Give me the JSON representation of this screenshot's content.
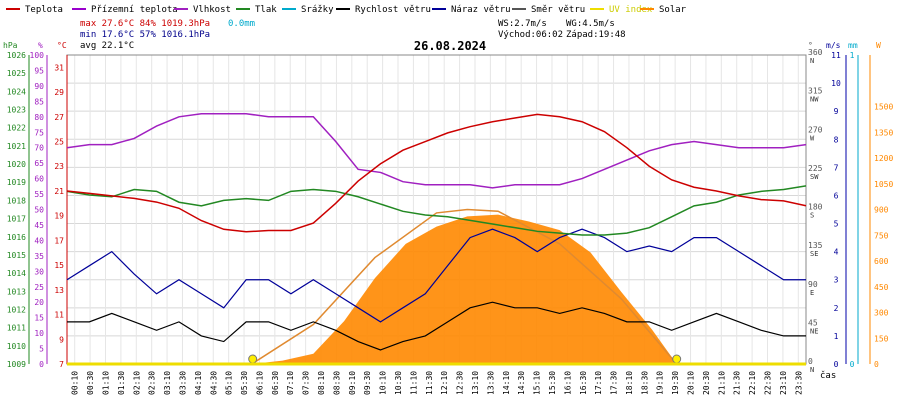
{
  "chart_data": {
    "type": "line",
    "title": "26.08.2024",
    "xlabel": "čas",
    "colors": {
      "teplota": "#cc0000",
      "pocitova": "#9900cc",
      "vlhkost": "#a020c0",
      "tlak": "#228822",
      "srazky": "#00aacc",
      "rychlost": "#000000",
      "naraz": "#000099",
      "smer": "#555555",
      "uv": "#eedd00",
      "solar": "#ff8800"
    },
    "legend": [
      {
        "key": "teplota",
        "label": "Teplota"
      },
      {
        "key": "pocitova",
        "label": "Přízemní teplota"
      },
      {
        "key": "vlhkost",
        "label": "Vlhkost"
      },
      {
        "key": "tlak",
        "label": "Tlak"
      },
      {
        "key": "srazky",
        "label": "Srážky"
      },
      {
        "key": "rychlost",
        "label": "Rychlost větru"
      },
      {
        "key": "naraz",
        "label": "Náraz větru"
      },
      {
        "key": "smer",
        "label": "Směr větru"
      },
      {
        "key": "uv",
        "label": "UV index"
      },
      {
        "key": "solar",
        "label": "Solar"
      }
    ],
    "stats": {
      "max_label": "max 27.6°C  84%  1019.3hPa",
      "min_label": "min 17.6°C  57%  1016.1hPa",
      "avg_label": "avg 22.1°C",
      "precip_label": "0.0mm",
      "ws_label": "WS:2.7m/s",
      "wg_label": "WG:4.5m/s",
      "sunrise_label": "Východ:06:02",
      "sunset_label": "Západ:19:48"
    },
    "axes": {
      "hpa": {
        "unit": "hPa",
        "min": 1009,
        "max": 1026,
        "ticks": [
          "1026",
          "1025",
          "1024",
          "1023",
          "1022",
          "1021",
          "1020",
          "1019",
          "1018",
          "1017",
          "1016",
          "1015",
          "1014",
          "1013",
          "1012",
          "1011",
          "1010",
          "1009"
        ]
      },
      "pct": {
        "unit": "%",
        "min": 0,
        "max": 100,
        "ticks": [
          "100",
          "95",
          "90",
          "85",
          "80",
          "75",
          "70",
          "65",
          "60",
          "55",
          "50",
          "45",
          "40",
          "35",
          "30",
          "25",
          "20",
          "15",
          "10",
          "5",
          "0"
        ]
      },
      "temp": {
        "unit": "°C",
        "min": 7,
        "max": 32,
        "ticks": [
          "31",
          "29",
          "27",
          "25",
          "23",
          "21",
          "19",
          "17",
          "15",
          "13",
          "11",
          "9",
          "7"
        ]
      },
      "deg": {
        "unit": "°",
        "min": 0,
        "max": 360,
        "ticks": [
          {
            "v": 360,
            "l": "360",
            "d": "N"
          },
          {
            "v": 315,
            "l": "315",
            "d": "NW"
          },
          {
            "v": 270,
            "l": "270",
            "d": "W"
          },
          {
            "v": 225,
            "l": "225",
            "d": "SW"
          },
          {
            "v": 180,
            "l": "180",
            "d": "S"
          },
          {
            "v": 135,
            "l": "135",
            "d": "SE"
          },
          {
            "v": 90,
            "l": "90",
            "d": "E"
          },
          {
            "v": 45,
            "l": "45",
            "d": "NE"
          },
          {
            "v": 0,
            "l": "0",
            "d": "N"
          }
        ]
      },
      "ms": {
        "unit": "m/s",
        "min": 0,
        "max": 11,
        "ticks": [
          "11",
          "10",
          "9",
          "8",
          "7",
          "6",
          "5",
          "4",
          "3",
          "2",
          "1",
          "0"
        ]
      },
      "mm": {
        "unit": "mm",
        "min": 0,
        "max": 1,
        "ticks": [
          "1",
          "0"
        ]
      },
      "solar": {
        "unit": "W",
        "min": 0,
        "max": 1800,
        "ticks": [
          "1500",
          "1350",
          "1200",
          "1050",
          "900",
          "750",
          "600",
          "450",
          "300",
          "150",
          "0"
        ]
      }
    },
    "x_ticks": [
      "00:10",
      "00:30",
      "01:10",
      "01:30",
      "02:10",
      "02:30",
      "03:10",
      "03:30",
      "04:10",
      "04:30",
      "05:10",
      "05:30",
      "06:10",
      "06:30",
      "07:10",
      "07:30",
      "08:10",
      "08:30",
      "09:10",
      "09:30",
      "10:10",
      "10:30",
      "11:10",
      "11:30",
      "12:10",
      "12:30",
      "13:10",
      "13:30",
      "14:10",
      "14:30",
      "15:10",
      "15:30",
      "16:10",
      "16:30",
      "17:10",
      "17:30",
      "18:10",
      "18:30",
      "19:10",
      "19:30",
      "20:10",
      "20:30",
      "21:10",
      "21:30",
      "22:10",
      "22:30",
      "23:10",
      "23:30"
    ],
    "series": {
      "teplota": [
        [
          0,
          21.0
        ],
        [
          1,
          20.8
        ],
        [
          2,
          20.6
        ],
        [
          3,
          20.4
        ],
        [
          4,
          20.1
        ],
        [
          5,
          19.6
        ],
        [
          6,
          18.6
        ],
        [
          7,
          17.9
        ],
        [
          8,
          17.7
        ],
        [
          9,
          17.8
        ],
        [
          10,
          17.8
        ],
        [
          11,
          18.4
        ],
        [
          12,
          20.0
        ],
        [
          13,
          21.8
        ],
        [
          14,
          23.2
        ],
        [
          15,
          24.3
        ],
        [
          16,
          25.0
        ],
        [
          17,
          25.7
        ],
        [
          18,
          26.2
        ],
        [
          19,
          26.6
        ],
        [
          20,
          26.9
        ],
        [
          21,
          27.2
        ],
        [
          22,
          27.0
        ],
        [
          23,
          26.6
        ],
        [
          24,
          25.8
        ],
        [
          25,
          24.5
        ],
        [
          26,
          23.0
        ],
        [
          27,
          21.9
        ],
        [
          28,
          21.3
        ],
        [
          29,
          21.0
        ],
        [
          30,
          20.6
        ],
        [
          31,
          20.3
        ],
        [
          32,
          20.2
        ],
        [
          33,
          19.8
        ]
      ],
      "vlhkost": [
        [
          0,
          70
        ],
        [
          1,
          71
        ],
        [
          2,
          71
        ],
        [
          3,
          73
        ],
        [
          4,
          77
        ],
        [
          5,
          80
        ],
        [
          6,
          81
        ],
        [
          7,
          81
        ],
        [
          8,
          81
        ],
        [
          9,
          80
        ],
        [
          10,
          80
        ],
        [
          11,
          80
        ],
        [
          12,
          72
        ],
        [
          13,
          63
        ],
        [
          14,
          62
        ],
        [
          15,
          59
        ],
        [
          16,
          58
        ],
        [
          17,
          58
        ],
        [
          18,
          58
        ],
        [
          19,
          57
        ],
        [
          20,
          58
        ],
        [
          21,
          58
        ],
        [
          22,
          58
        ],
        [
          23,
          60
        ],
        [
          24,
          63
        ],
        [
          25,
          66
        ],
        [
          26,
          69
        ],
        [
          27,
          71
        ],
        [
          28,
          72
        ],
        [
          29,
          71
        ],
        [
          30,
          70
        ],
        [
          31,
          70
        ],
        [
          32,
          70
        ],
        [
          33,
          71
        ]
      ],
      "tlak": [
        [
          0,
          1018.5
        ],
        [
          1,
          1018.3
        ],
        [
          2,
          1018.2
        ],
        [
          3,
          1018.6
        ],
        [
          4,
          1018.5
        ],
        [
          5,
          1017.9
        ],
        [
          6,
          1017.7
        ],
        [
          7,
          1018.0
        ],
        [
          8,
          1018.1
        ],
        [
          9,
          1018.0
        ],
        [
          10,
          1018.5
        ],
        [
          11,
          1018.6
        ],
        [
          12,
          1018.5
        ],
        [
          13,
          1018.2
        ],
        [
          14,
          1017.8
        ],
        [
          15,
          1017.4
        ],
        [
          16,
          1017.2
        ],
        [
          17,
          1017.1
        ],
        [
          18,
          1016.9
        ],
        [
          19,
          1016.7
        ],
        [
          20,
          1016.5
        ],
        [
          21,
          1016.3
        ],
        [
          22,
          1016.2
        ],
        [
          23,
          1016.1
        ],
        [
          24,
          1016.1
        ],
        [
          25,
          1016.2
        ],
        [
          26,
          1016.5
        ],
        [
          27,
          1017.1
        ],
        [
          28,
          1017.7
        ],
        [
          29,
          1017.9
        ],
        [
          30,
          1018.3
        ],
        [
          31,
          1018.5
        ],
        [
          32,
          1018.6
        ],
        [
          33,
          1018.8
        ]
      ],
      "solar": [
        [
          6.0,
          0
        ],
        [
          7,
          20
        ],
        [
          8,
          60
        ],
        [
          9,
          250
        ],
        [
          10,
          500
        ],
        [
          11,
          700
        ],
        [
          12,
          800
        ],
        [
          13,
          860
        ],
        [
          14,
          870
        ],
        [
          15,
          830
        ],
        [
          16,
          780
        ],
        [
          17,
          650
        ],
        [
          18,
          420
        ],
        [
          19,
          200
        ],
        [
          19.8,
          0
        ]
      ],
      "solar_max": [
        [
          6.0,
          0
        ],
        [
          8,
          230
        ],
        [
          10,
          620
        ],
        [
          12,
          880
        ],
        [
          13,
          900
        ],
        [
          14,
          890
        ],
        [
          16,
          700
        ],
        [
          18,
          380
        ],
        [
          19.8,
          0
        ]
      ],
      "rychlost": [
        1.5,
        1.5,
        1.8,
        1.5,
        1.2,
        1.5,
        1.0,
        0.8,
        1.5,
        1.5,
        1.2,
        1.5,
        1.2,
        0.8,
        0.5,
        0.8,
        1.0,
        1.5,
        2.0,
        2.2,
        2.0,
        2.0,
        1.8,
        2.0,
        1.8,
        1.5,
        1.5,
        1.2,
        1.5,
        1.8,
        1.5,
        1.2,
        1.0,
        1.0
      ],
      "naraz": [
        3.0,
        3.5,
        4.0,
        3.2,
        2.5,
        3.0,
        2.5,
        2.0,
        3.0,
        3.0,
        2.5,
        3.0,
        2.5,
        2.0,
        1.5,
        2.0,
        2.5,
        3.5,
        4.5,
        4.8,
        4.5,
        4.0,
        4.5,
        4.8,
        4.5,
        4.0,
        4.2,
        4.0,
        4.5,
        4.5,
        4.0,
        3.5,
        3.0,
        3.0
      ]
    },
    "sun_markers": [
      6.03,
      19.8
    ]
  }
}
